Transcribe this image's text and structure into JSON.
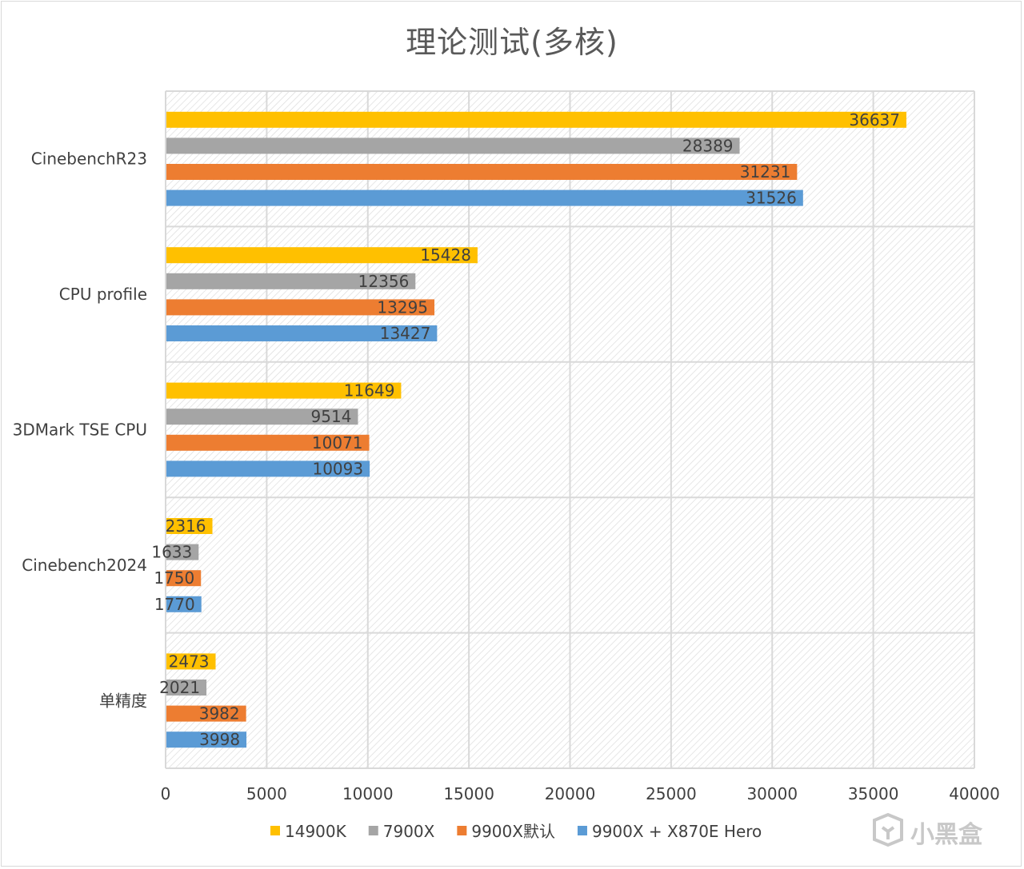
{
  "chart_data": {
    "type": "bar",
    "orientation": "horizontal",
    "title": "理论测试(多核)",
    "categories": [
      "CinebenchR23",
      "CPU profile",
      "3DMark TSE CPU",
      "Cinebench2024",
      "单精度"
    ],
    "series": [
      {
        "name": "14900K",
        "color": "#ffc000",
        "values": [
          36637,
          15428,
          11649,
          2316,
          2473
        ]
      },
      {
        "name": "7900X",
        "color": "#a5a5a5",
        "values": [
          28389,
          12356,
          9514,
          1633,
          2021
        ]
      },
      {
        "name": "9900X默认",
        "color": "#ed7d31",
        "values": [
          31231,
          13295,
          10071,
          1750,
          3982
        ]
      },
      {
        "name": "9900X + X870E Hero",
        "color": "#5b9bd5",
        "values": [
          31526,
          13427,
          10093,
          1770,
          3998
        ]
      }
    ],
    "xlim": [
      0,
      40000
    ],
    "xticks": [
      0,
      5000,
      10000,
      15000,
      20000,
      25000,
      30000,
      35000,
      40000
    ],
    "xlabel": "",
    "ylabel": "",
    "grid": true,
    "legend": "bottom",
    "data_labels": true
  },
  "watermark": {
    "text": "小黑盒",
    "icon": "heybox-logo-icon"
  }
}
